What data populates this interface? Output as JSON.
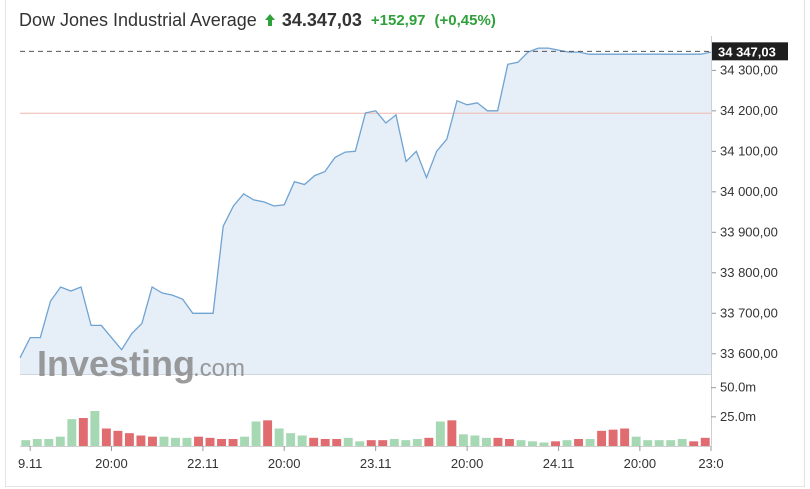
{
  "header": {
    "title": "Dow Jones Industrial Average",
    "price": "34.347,03",
    "change": "+152,97",
    "change_pct": "(+0,45%)",
    "direction": "up",
    "up_color": "#2fa13a"
  },
  "watermark": {
    "brand": "Investing",
    "suffix": ".com"
  },
  "last_price_label": "34 347,03",
  "colors": {
    "line": "#6fa3d2",
    "area": "#e6eef7",
    "reference_line": "#f2b8b0",
    "vol_up": "#a6d8b4",
    "vol_down": "#e06c70",
    "label_bg": "#1f1f1f"
  },
  "chart_data": {
    "type": "area",
    "title": "",
    "price_axis": {
      "ylim": [
        33550,
        34375
      ],
      "ticks": [
        33600,
        33700,
        33800,
        33900,
        34000,
        34100,
        34200,
        34300
      ],
      "tick_labels": [
        "33 600,00",
        "33 700,00",
        "33 800,00",
        "33 900,00",
        "34 000,00",
        "34 100,00",
        "34 200,00",
        "34 300,00"
      ],
      "reference_value": 34194,
      "last_value": 34347.03
    },
    "x_axis": {
      "range": [
        0,
        68
      ],
      "ticks": [
        1,
        9,
        18,
        26,
        35,
        44,
        53,
        61,
        68
      ],
      "tick_labels": [
        "9.11",
        "20:00",
        "22.11",
        "20:00",
        "23.11",
        "20:00",
        "24.11",
        "20:00",
        "23:0"
      ]
    },
    "series": [
      {
        "x": [
          0,
          1,
          2,
          3,
          4,
          5,
          6,
          7,
          8,
          9,
          10,
          11,
          12,
          13,
          14,
          15,
          16,
          17,
          18,
          19,
          20,
          21,
          22,
          23,
          24,
          25,
          26,
          27,
          28,
          29,
          30,
          31,
          32,
          33,
          34,
          35,
          36,
          37,
          38,
          39,
          40,
          41,
          42,
          43,
          44,
          45,
          46,
          47,
          48,
          49,
          50,
          51,
          52,
          53,
          54,
          55,
          56,
          57,
          58,
          59,
          60,
          61,
          62,
          63,
          64,
          65,
          66,
          67,
          68
        ],
        "values": [
          33590,
          33640,
          33640,
          33730,
          33765,
          33755,
          33765,
          33670,
          33670,
          33640,
          33610,
          33650,
          33675,
          33765,
          33750,
          33745,
          33735,
          33700,
          33700,
          33700,
          33915,
          33965,
          33995,
          33980,
          33975,
          33965,
          33968,
          34025,
          34018,
          34040,
          34050,
          34085,
          34098,
          34100,
          34195,
          34200,
          34170,
          34190,
          34075,
          34100,
          34035,
          34100,
          34130,
          34225,
          34215,
          34220,
          34200,
          34200,
          34315,
          34320,
          34345,
          34355,
          34355,
          34350,
          34345,
          34345,
          34340,
          34340,
          34340,
          34340,
          34340,
          34340,
          34340,
          34340,
          34340,
          34340,
          34340,
          34340,
          34345
        ]
      }
    ],
    "volume": {
      "ylim": [
        0,
        60
      ],
      "ticks": [
        25,
        50
      ],
      "tick_labels": [
        "25.0m",
        "50.0m"
      ],
      "values": [
        5,
        6,
        6,
        8,
        23,
        24,
        30,
        15,
        13,
        11,
        9,
        8,
        8,
        7,
        7,
        8,
        7,
        6,
        6,
        8,
        21,
        22,
        15,
        11,
        9,
        7,
        6,
        6,
        7,
        4,
        5,
        5,
        6,
        5,
        6,
        7,
        21,
        22,
        10,
        9,
        7,
        7,
        6,
        5,
        4,
        3,
        4,
        5,
        6,
        6,
        13,
        14,
        15,
        8,
        5,
        5,
        5,
        6,
        4,
        7
      ],
      "directions": [
        "u",
        "u",
        "u",
        "u",
        "u",
        "d",
        "u",
        "d",
        "d",
        "d",
        "d",
        "d",
        "u",
        "u",
        "u",
        "d",
        "d",
        "d",
        "d",
        "u",
        "u",
        "d",
        "u",
        "u",
        "u",
        "d",
        "d",
        "d",
        "u",
        "u",
        "d",
        "d",
        "u",
        "u",
        "u",
        "d",
        "u",
        "d",
        "u",
        "u",
        "u",
        "d",
        "d",
        "u",
        "u",
        "u",
        "d",
        "u",
        "d",
        "u",
        "d",
        "d",
        "d",
        "u",
        "u",
        "u",
        "u",
        "u",
        "d",
        "d"
      ]
    }
  }
}
